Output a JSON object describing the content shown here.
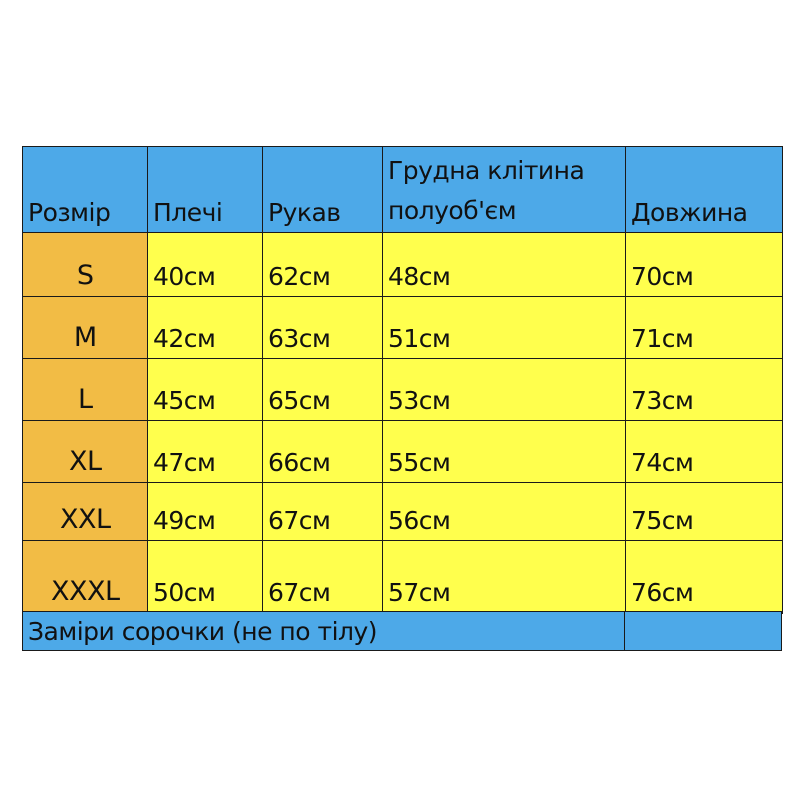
{
  "colors": {
    "header": "#4DA9E8",
    "size_column": "#F2BC45",
    "values": "#FFFF4D"
  },
  "headers": [
    "Розмір",
    "Плечі",
    "Рукав",
    [
      "Грудна клітина",
      "полуоб'єм"
    ],
    "Довжина"
  ],
  "rows": [
    [
      "S",
      "40см",
      "62см",
      "48см",
      "70см"
    ],
    [
      "M",
      "42см",
      "63см",
      "51см",
      "71см"
    ],
    [
      "L",
      "45см",
      "65см",
      "53см",
      "73см"
    ],
    [
      "XL",
      "47см",
      "66см",
      "55см",
      "74см"
    ],
    [
      "XXL",
      "49см",
      "67см",
      "56см",
      "75см"
    ],
    [
      "XXXL",
      "50см",
      "67см",
      "57см",
      "76см"
    ]
  ],
  "footer": "Заміри сорочки (не по тілу)"
}
